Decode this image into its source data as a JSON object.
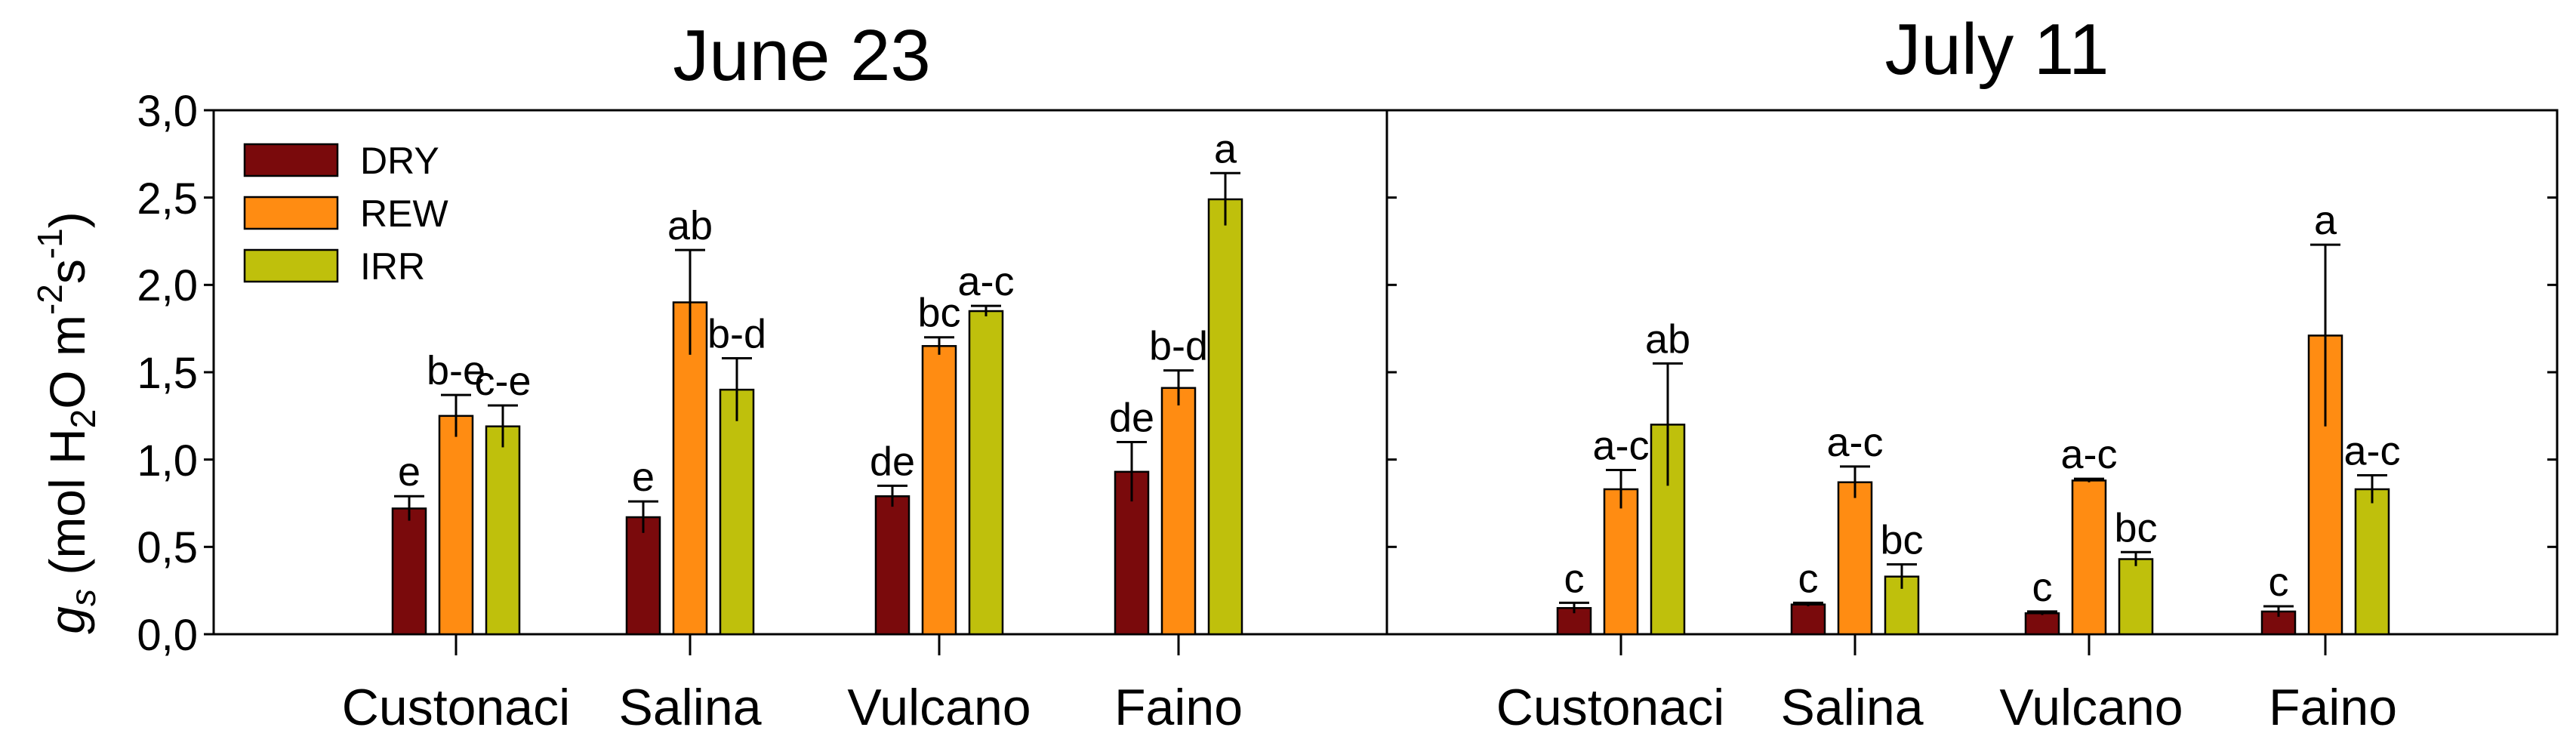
{
  "chart_data": {
    "type": "bar",
    "ylabel": {
      "symbol": "g",
      "symbol_sub": "s",
      "open": " (mol H",
      "sub2": "2",
      "mid": "O m",
      "exp1": "-2",
      "s": "s",
      "exp2": "-1",
      "close": ")"
    },
    "ylim": [
      0,
      3.0
    ],
    "yticks": [
      "0,0",
      "0,5",
      "1,0",
      "1,5",
      "2,0",
      "2,5",
      "3,0"
    ],
    "categories": [
      "Custonaci",
      "Salina",
      "Vulcano",
      "Faino"
    ],
    "legend": [
      {
        "name": "DRY",
        "color": "#7a0a0c"
      },
      {
        "name": "REW",
        "color": "#ff8c12"
      },
      {
        "name": "IRR",
        "color": "#bfc00c"
      }
    ],
    "panels": [
      {
        "title": "June 23",
        "series": [
          {
            "name": "DRY",
            "values": [
              0.72,
              0.67,
              0.79,
              0.93
            ],
            "errors": [
              0.07,
              0.09,
              0.06,
              0.17
            ],
            "letters": [
              "e",
              "e",
              "de",
              "de"
            ]
          },
          {
            "name": "REW",
            "values": [
              1.25,
              1.9,
              1.65,
              1.41
            ],
            "errors": [
              0.12,
              0.3,
              0.05,
              0.1
            ],
            "letters": [
              "b-e",
              "ab",
              "bc",
              "b-d"
            ]
          },
          {
            "name": "IRR",
            "values": [
              1.19,
              1.4,
              1.85,
              2.49
            ],
            "errors": [
              0.12,
              0.18,
              0.03,
              0.15
            ],
            "letters": [
              "c-e",
              "b-d",
              "a-c",
              "a"
            ]
          }
        ]
      },
      {
        "title": "July 11",
        "series": [
          {
            "name": "DRY",
            "values": [
              0.15,
              0.17,
              0.12,
              0.13
            ],
            "errors": [
              0.03,
              0.01,
              0.01,
              0.03
            ],
            "letters": [
              "c",
              "c",
              "c",
              "c"
            ]
          },
          {
            "name": "REW",
            "values": [
              0.83,
              0.87,
              0.88,
              1.71
            ],
            "errors": [
              0.11,
              0.09,
              0.01,
              0.52
            ],
            "letters": [
              "a-c",
              "a-c",
              "a-c",
              "a"
            ]
          },
          {
            "name": "IRR",
            "values": [
              1.2,
              0.33,
              0.43,
              0.83
            ],
            "errors": [
              0.35,
              0.07,
              0.04,
              0.08
            ],
            "letters": [
              "ab",
              "bc",
              "bc",
              "a-c"
            ]
          }
        ]
      }
    ]
  }
}
